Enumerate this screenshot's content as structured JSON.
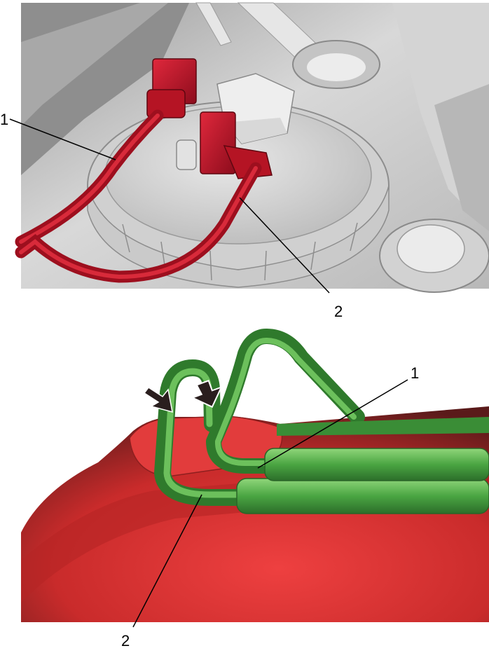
{
  "top_figure": {
    "callouts": [
      {
        "label": "1"
      },
      {
        "label": "2"
      }
    ]
  },
  "bottom_figure": {
    "callouts": [
      {
        "label": "1"
      },
      {
        "label": "2"
      }
    ]
  },
  "colors": {
    "connector_red": "#c8102e",
    "tank_red": "#d93a3a",
    "hose_green": "#3f9a3a",
    "part_gray": "#cfcfcf",
    "arrow": "#2a1e1e"
  }
}
